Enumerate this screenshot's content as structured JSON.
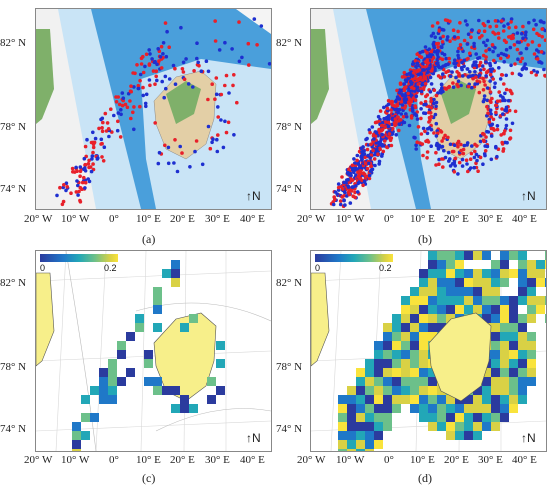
{
  "panels": [
    {
      "id": "a",
      "caption": "(a)",
      "type": "points",
      "density": "sparse"
    },
    {
      "id": "b",
      "caption": "(b)",
      "type": "points",
      "density": "dense"
    },
    {
      "id": "c",
      "caption": "(c)",
      "type": "grid",
      "density": "sparse"
    },
    {
      "id": "d",
      "caption": "(d)",
      "type": "grid",
      "density": "dense"
    }
  ],
  "lat_labels": [
    "82° N",
    "78° N",
    "74° N"
  ],
  "lon_labels": [
    "20° W",
    "10° W",
    "0°",
    "10° E",
    "20° E",
    "30° E",
    "40° E"
  ],
  "north_label": "N",
  "colorbar": {
    "min": "0",
    "max": "0.2",
    "colors": [
      "#2b3b9e",
      "#1f78c8",
      "#22a7b7",
      "#6cc08a",
      "#d9d145",
      "#f9e33c"
    ]
  },
  "colors": {
    "deep_ocean": "#2e8fd6",
    "mid_ocean": "#6ab7e8",
    "shelf": "#c9e4f6",
    "land_green": "#7fb06a",
    "land_tan": "#e3cfa6",
    "ice": "#f4f4f4",
    "point_red": "#e8202a",
    "point_blue": "#1e2fd0",
    "land_yellow": "#f7ef8a"
  }
}
